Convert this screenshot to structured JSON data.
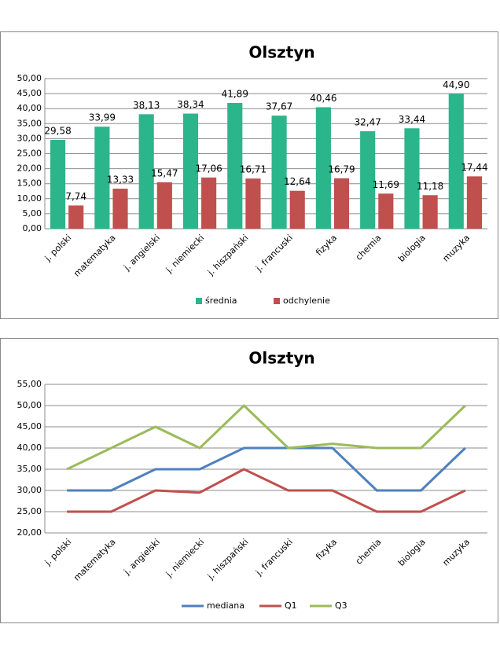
{
  "chart_data": [
    {
      "type": "bar",
      "title": "Olsztyn",
      "categories": [
        "j. polski",
        "matematyka",
        "j. angielski",
        "j. niemiecki",
        "j. hiszpański",
        "j. francuski",
        "fizyka",
        "chemia",
        "biologia",
        "muzyka"
      ],
      "series": [
        {
          "name": "średnia",
          "color": "#2bb58b",
          "values": [
            29.58,
            33.99,
            38.13,
            38.34,
            41.89,
            37.67,
            40.46,
            32.47,
            33.44,
            44.9
          ],
          "value_labels": [
            "29,58",
            "33,99",
            "38,13",
            "38,34",
            "41,89",
            "37,67",
            "40,46",
            "32,47",
            "33,44",
            "44,90"
          ]
        },
        {
          "name": "odchylenie",
          "color": "#c0504d",
          "values": [
            7.74,
            13.33,
            15.47,
            17.06,
            16.71,
            12.64,
            16.79,
            11.69,
            11.18,
            17.44
          ],
          "value_labels": [
            "7,74",
            "13,33",
            "15,47",
            "17,06",
            "16,71",
            "12,64",
            "16,79",
            "11,69",
            "11,18",
            "17,44"
          ]
        }
      ],
      "ylim": [
        0,
        50
      ],
      "yticks": [
        {
          "value": 0,
          "label": "0,00"
        },
        {
          "value": 5,
          "label": "5,00"
        },
        {
          "value": 10,
          "label": "10,00"
        },
        {
          "value": 15,
          "label": "15,00"
        },
        {
          "value": 20,
          "label": "20,00"
        },
        {
          "value": 25,
          "label": "25,00"
        },
        {
          "value": 30,
          "label": "30,00"
        },
        {
          "value": 35,
          "label": "35,00"
        },
        {
          "value": 40,
          "label": "40,00"
        },
        {
          "value": 45,
          "label": "45,00"
        },
        {
          "value": 50,
          "label": "50,00"
        }
      ],
      "grid": true,
      "legend": "bottom"
    },
    {
      "type": "line",
      "title": "Olsztyn",
      "categories": [
        "j. polski",
        "matematyka",
        "j. angielski",
        "j. niemiecki",
        "j. hiszpański",
        "j. francuski",
        "fizyka",
        "chemia",
        "biologia",
        "muzyka"
      ],
      "series": [
        {
          "name": "mediana",
          "color": "#4f81bd",
          "values": [
            30,
            30,
            35,
            35,
            40,
            40,
            40,
            30,
            30,
            40
          ]
        },
        {
          "name": "Q1",
          "color": "#c0504d",
          "values": [
            25,
            25,
            30,
            29.5,
            35,
            30,
            30,
            25,
            25,
            30
          ]
        },
        {
          "name": "Q3",
          "color": "#9bbb59",
          "values": [
            35,
            40,
            45,
            40,
            50,
            40,
            41,
            40,
            40,
            50
          ]
        }
      ],
      "ylim": [
        20,
        55
      ],
      "yticks": [
        {
          "value": 20,
          "label": "20,00"
        },
        {
          "value": 25,
          "label": "25,00"
        },
        {
          "value": 30,
          "label": "30,00"
        },
        {
          "value": 35,
          "label": "35,00"
        },
        {
          "value": 40,
          "label": "40,00"
        },
        {
          "value": 45,
          "label": "45,00"
        },
        {
          "value": 50,
          "label": "50,00"
        },
        {
          "value": 55,
          "label": "55,00"
        }
      ],
      "grid": true,
      "legend": "bottom"
    }
  ]
}
